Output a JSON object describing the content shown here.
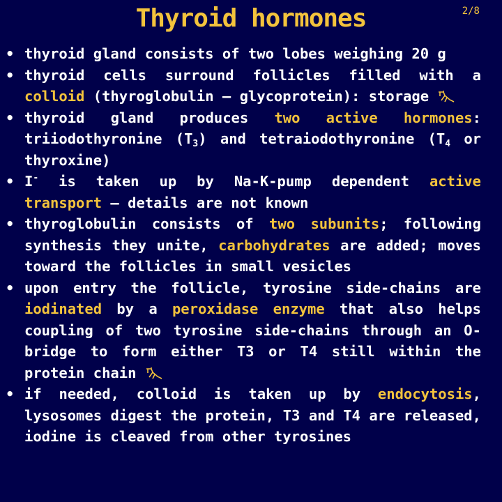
{
  "header": {
    "title": "Thyroid hormones",
    "page": "2/8"
  },
  "bullets": [
    [
      "thyroid gland consists of two lobes weighing 20 g"
    ],
    [
      "thyroid cells surround follicles filled with a ",
      "colloid",
      " (thyroglobulin – glycoprotein): storage "
    ],
    [
      "thyroid gland produces ",
      "two active hormones",
      ": triiodothyronine (T",
      "3",
      ") and tetraiodothyronine (T",
      "4",
      " or thyroxine)"
    ],
    [
      "I",
      "-",
      " is taken up by Na-K-pump dependent ",
      "active transport",
      " – details are not known"
    ],
    [
      "thyroglobulin consists of ",
      "two subunits",
      "; following synthesis they unite, ",
      "carbohydrates",
      " are added; moves toward the follicles in small vesicles"
    ],
    [
      "upon entry the follicle, tyrosine side-chains are ",
      "iodinated",
      " by a ",
      "peroxidase enzyme",
      " that also helps coupling of two tyrosine side-chains through an O-bridge to form either T3 or T4 still within the protein chain "
    ],
    [
      "if needed, colloid is taken up by ",
      "endocytosis",
      ", lysosomes digest the protein, T3 and T4 are released, iodine is cleaved from other tyrosines"
    ]
  ]
}
